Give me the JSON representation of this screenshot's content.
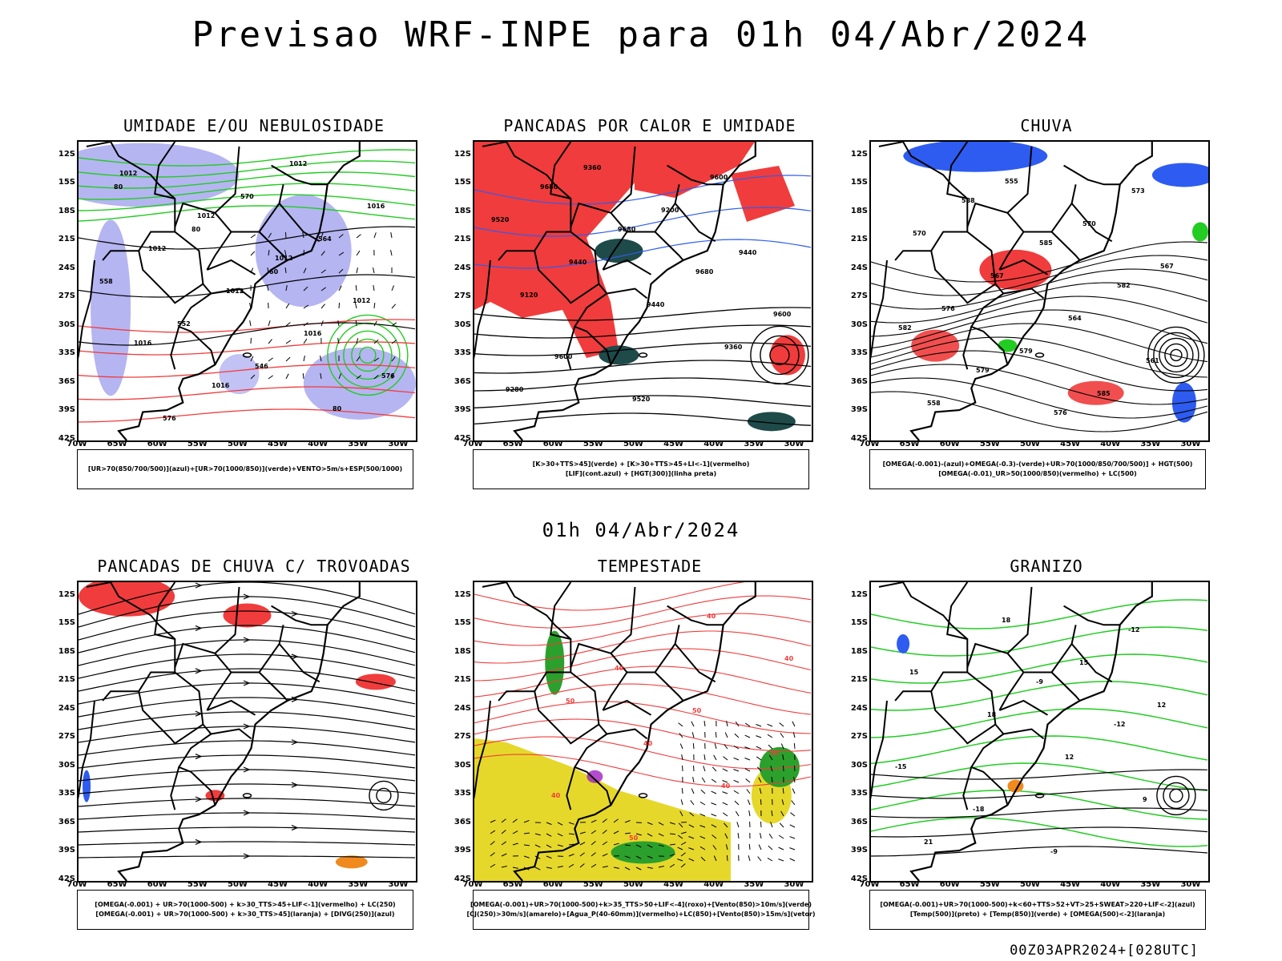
{
  "title": "Previsao WRF-INPE  para 01h 04/Abr/2024",
  "mid_time": "01h 04/Abr/2024",
  "footer": "00Z03APR2024+[028UTC]",
  "lat_ticks": [
    "12S",
    "15S",
    "18S",
    "21S",
    "24S",
    "27S",
    "30S",
    "33S",
    "36S",
    "39S",
    "42S"
  ],
  "lon_ticks": [
    "70W",
    "65W",
    "60W",
    "55W",
    "50W",
    "45W",
    "40W",
    "35W",
    "30W"
  ],
  "colors": {
    "humidity_blue": "#a8a8f0",
    "green_contour": "#22cc22",
    "red_fill": "#f03c3c",
    "dark_teal": "#1f4a4a",
    "yellow": "#e6d82a",
    "orange": "#f08a1e",
    "blue": "#2e5cf0",
    "purple": "#a020c0"
  },
  "panels": [
    {
      "title": "UMIDADE E/OU NEBULOSIDADE",
      "legend": [
        "[UR>70(850/700/500)](azul)+[UR>70(1000/850)](verde)+VENTO>5m/s+ESP(500/1000)"
      ],
      "contour_labels": [
        "1012",
        "1012",
        "1012",
        "1012",
        "1016",
        "1016",
        "1012",
        "1016",
        "1012",
        "1012",
        "1016",
        "576",
        "576",
        "570",
        "564",
        "558",
        "552",
        "546",
        "80",
        "80",
        "80",
        "60"
      ]
    },
    {
      "title": "PANCADAS POR CALOR E UMIDADE",
      "legend": [
        "[K>30+TTS>45](verde) + [K>30+TTS>45+LI<-1](vermelho)",
        "[LIF](cont.azul) + [HGT(300)](linha preta)"
      ],
      "contour_labels": [
        "9680",
        "9680",
        "9680",
        "9600",
        "9600",
        "9520",
        "9600",
        "9520",
        "9440",
        "9440",
        "9360",
        "9280",
        "9360",
        "9200",
        "9440",
        "9120"
      ]
    },
    {
      "title": "CHUVA",
      "legend": [
        "[OMEGA(-0.001)-(azul)+OMEGA(-0.3)-(verde)+UR>70(1000/850/700/500)] + HGT(500)",
        "[OMEGA(-0.01)_UR>50(1000/850)(vermelho) + LC(500)"
      ],
      "contour_labels": [
        "588",
        "585",
        "582",
        "582",
        "579",
        "576",
        "573",
        "570",
        "567",
        "564",
        "561",
        "558",
        "555",
        "570",
        "567",
        "576",
        "579",
        "585"
      ]
    },
    {
      "title": "PANCADAS DE CHUVA C/ TROVOADAS",
      "legend": [
        "[OMEGA(-0.001) + UR>70(1000-500) + k>30_TTS>45+LIF<-1](vermelho) + LC(250)",
        "[OMEGA(-0.001) + UR>70(1000-500) + k>30_TTS>45](laranja) + [DIVG(250)](azul)"
      ],
      "contour_labels": []
    },
    {
      "title": "TEMPESTADE",
      "legend": [
        "[OMEGA(-0.001)+UR>70(1000-500)+k>35_TTS>50+LIF<-4](roxo)+[Vento(850)>10m/s](verde)",
        "[CJ(250)>30m/s](amarelo)+[Agua_P(40-60mm)](vermelho)+LC(850)+[Vento(850)>15m/s](vetor)"
      ],
      "contour_labels": [
        "40",
        "50",
        "50",
        "40",
        "50",
        "40",
        "40",
        "50",
        "40",
        "40"
      ]
    },
    {
      "title": "GRANIZO",
      "legend": [
        "[OMEGA(-0.001)+UR>70(1000-500)+k<60+TTS>52+VT>25+SWEAT>220+LIF<-2](azul)",
        "[Temp(500)](preto) + [Temp(850)](verde) + [OMEGA(500)<-2](laranja)"
      ],
      "contour_labels": [
        "-9",
        "-12",
        "-15",
        "-18",
        "-9",
        "-12",
        "15",
        "18",
        "12",
        "9",
        "21",
        "18",
        "15",
        "12"
      ]
    }
  ]
}
